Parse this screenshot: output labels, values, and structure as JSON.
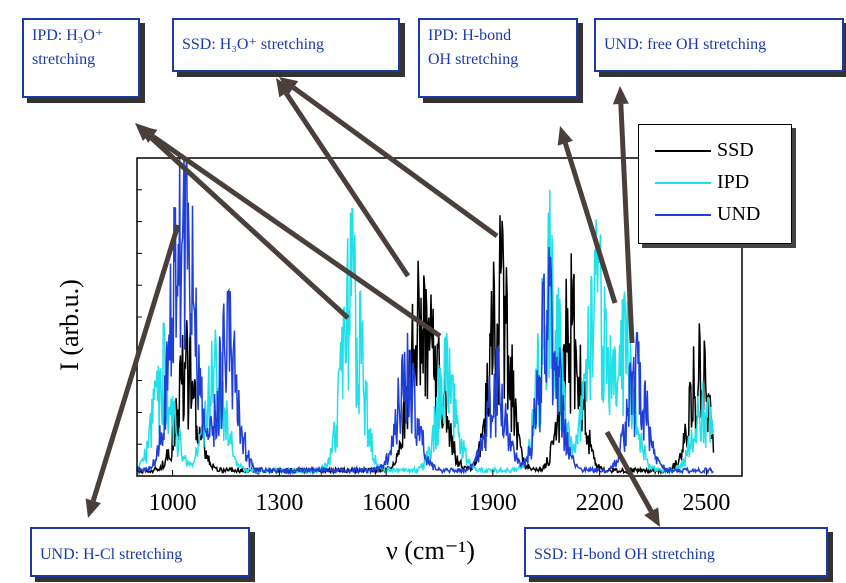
{
  "chart_data": {
    "type": "line",
    "xlabel": "ν (cm⁻¹)",
    "ylabel": "I (arb.u.)",
    "xlim": [
      900,
      2600
    ],
    "ylim": [
      0,
      1
    ],
    "x_ticks": [
      "1000",
      "1300",
      "1600",
      "1900",
      "2200",
      "2500"
    ],
    "x_tick_values": [
      1000,
      1300,
      1600,
      1900,
      2200,
      2500
    ],
    "legend_position": "top-right",
    "series": [
      {
        "name": "SSD",
        "color": "#000000",
        "peaks": [
          [
            1040,
            0.49
          ],
          [
            1690,
            0.65
          ],
          [
            1745,
            0.4
          ],
          [
            1920,
            0.82
          ],
          [
            2120,
            0.7
          ],
          [
            2480,
            0.48
          ]
        ]
      },
      {
        "name": "IPD",
        "color": "#22e0e8",
        "peaks": [
          [
            975,
            0.48
          ],
          [
            1120,
            0.46
          ],
          [
            1505,
            0.84
          ],
          [
            1770,
            0.45
          ],
          [
            2060,
            0.9
          ],
          [
            2190,
            0.8
          ],
          [
            2270,
            0.58
          ],
          [
            2490,
            0.3
          ]
        ]
      },
      {
        "name": "UND",
        "color": "#1f3fd8",
        "peaks": [
          [
            1020,
            0.99
          ],
          [
            1045,
            0.5
          ],
          [
            1155,
            0.58
          ],
          [
            1660,
            0.45
          ],
          [
            1910,
            0.4
          ],
          [
            2058,
            0.72
          ],
          [
            2305,
            0.45
          ]
        ]
      }
    ]
  },
  "annotations": {
    "ipd_h3o": {
      "line1": "IPD:  H₃O⁺",
      "line2": "stretching"
    },
    "ssd_h3o": {
      "line1": "SSD: H₃O⁺ stretching"
    },
    "ipd_hbond": {
      "line1": "IPD:      H-bond",
      "line2": "OH stretching"
    },
    "und_free_oh": {
      "line1": "UND: free OH stretching"
    },
    "und_hcl": {
      "line1": "UND: H-Cl stretching"
    },
    "ssd_hbond": {
      "line1": "SSD: H-bond OH stretching"
    }
  }
}
